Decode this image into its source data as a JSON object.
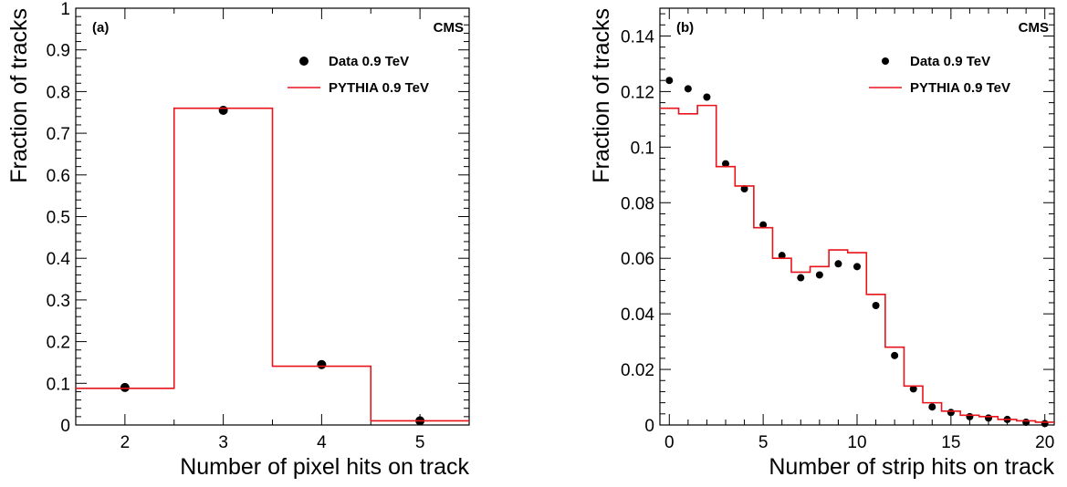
{
  "chart_data": [
    {
      "type": "scatter",
      "panel_tag": "(a)",
      "experiment_label": "CMS",
      "xlabel": "Number of pixel hits on track",
      "ylabel": "Fraction of tracks",
      "xlim": [
        1.5,
        5.5
      ],
      "ylim": [
        0,
        1
      ],
      "xticks": [
        2,
        3,
        4,
        5
      ],
      "yticks": [
        0,
        0.1,
        0.2,
        0.3,
        0.4,
        0.5,
        0.6,
        0.7,
        0.8,
        0.9,
        1
      ],
      "ytick_labels": [
        "0",
        "0.1",
        "0.2",
        "0.3",
        "0.4",
        "0.5",
        "0.6",
        "0.7",
        "0.8",
        "0.9",
        "1"
      ],
      "legend_position": "top-right",
      "series": [
        {
          "name": "Data 0.9 TeV",
          "kind": "points",
          "color": "#000000",
          "x": [
            2,
            3,
            4,
            5
          ],
          "y": [
            0.09,
            0.755,
            0.145,
            0.01
          ]
        },
        {
          "name": "PYTHIA 0.9 TeV",
          "kind": "step-histogram",
          "color": "#e8141a",
          "bin_edges": [
            1.5,
            2.5,
            3.5,
            4.5,
            5.5
          ],
          "values": [
            0.088,
            0.76,
            0.141,
            0.01
          ]
        }
      ]
    },
    {
      "type": "scatter",
      "panel_tag": "(b)",
      "experiment_label": "CMS",
      "xlabel": "Number of strip hits on track",
      "ylabel": "Fraction of tracks",
      "xlim": [
        -0.5,
        20.5
      ],
      "ylim": [
        0,
        0.15
      ],
      "xticks": [
        0,
        5,
        10,
        15,
        20
      ],
      "yticks": [
        0,
        0.02,
        0.04,
        0.06,
        0.08,
        0.1,
        0.12,
        0.14
      ],
      "ytick_labels": [
        "0",
        "0.02",
        "0.04",
        "0.06",
        "0.08",
        "0.1",
        "0.12",
        "0.14"
      ],
      "legend_position": "top-right",
      "series": [
        {
          "name": "Data 0.9 TeV",
          "kind": "points",
          "color": "#000000",
          "x": [
            0,
            1,
            2,
            3,
            4,
            5,
            6,
            7,
            8,
            9,
            10,
            11,
            12,
            13,
            14,
            15,
            16,
            17,
            18,
            19,
            20
          ],
          "y": [
            0.124,
            0.121,
            0.118,
            0.094,
            0.085,
            0.072,
            0.061,
            0.053,
            0.054,
            0.058,
            0.057,
            0.043,
            0.025,
            0.013,
            0.0065,
            0.0045,
            0.003,
            0.0025,
            0.002,
            0.001,
            0.0005
          ]
        },
        {
          "name": "PYTHIA 0.9 TeV",
          "kind": "step-histogram",
          "color": "#e8141a",
          "bin_edges": [
            -0.5,
            0.5,
            1.5,
            2.5,
            3.5,
            4.5,
            5.5,
            6.5,
            7.5,
            8.5,
            9.5,
            10.5,
            11.5,
            12.5,
            13.5,
            14.5,
            15.5,
            16.5,
            17.5,
            18.5,
            19.5,
            20.5
          ],
          "values": [
            0.114,
            0.112,
            0.115,
            0.093,
            0.086,
            0.071,
            0.06,
            0.055,
            0.057,
            0.063,
            0.062,
            0.047,
            0.028,
            0.014,
            0.008,
            0.005,
            0.0035,
            0.003,
            0.002,
            0.0015,
            0.001
          ]
        }
      ]
    }
  ]
}
